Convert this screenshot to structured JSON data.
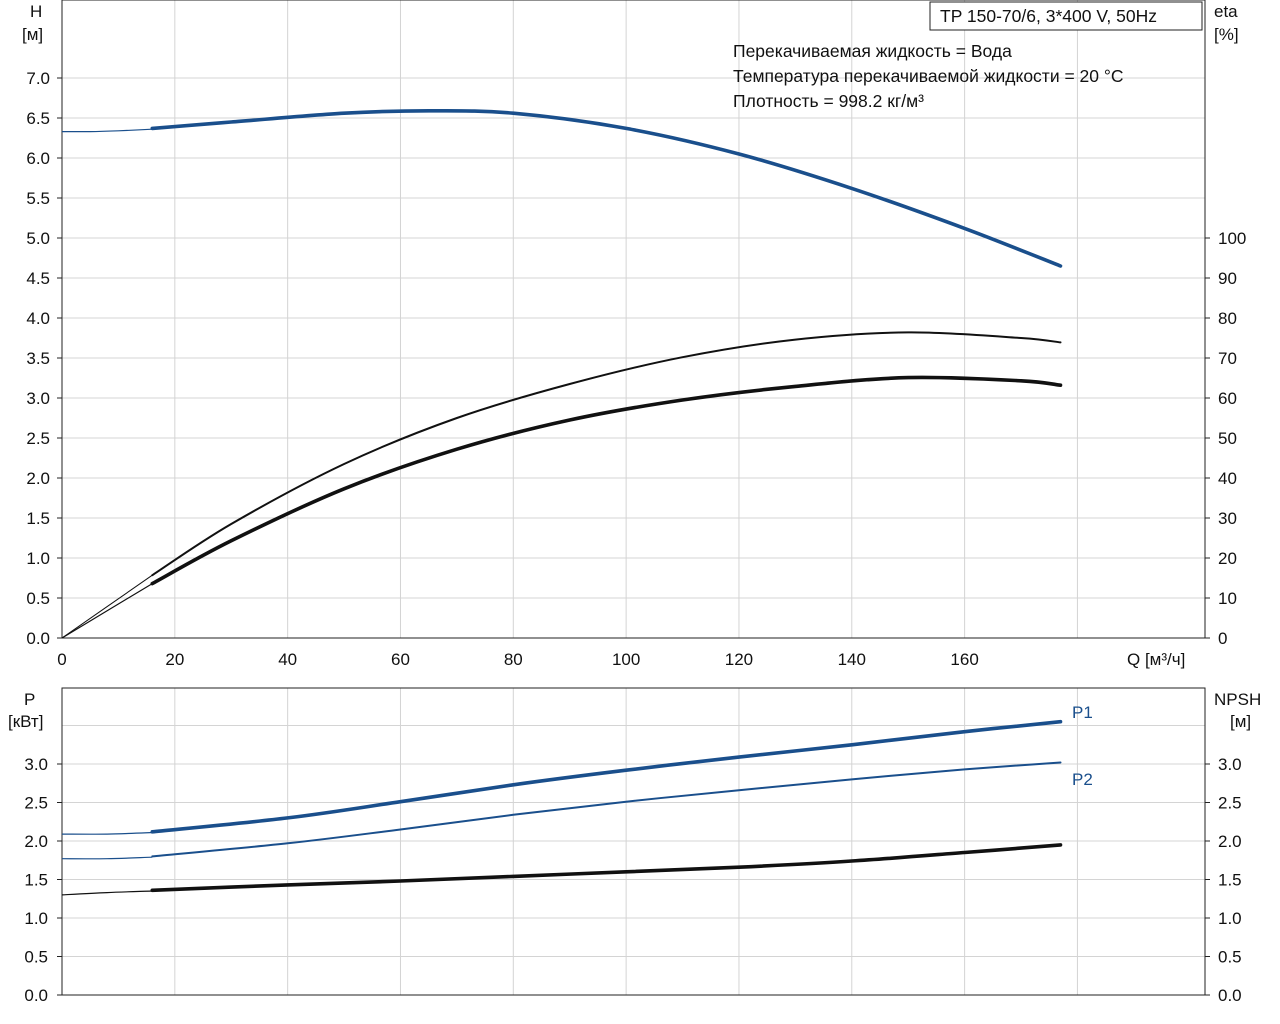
{
  "chart_data": [
    {
      "type": "line",
      "title_box": "TP 150-70/6, 3*400 V, 50Hz",
      "info_lines": [
        "Перекачиваемая жидкость = Вода",
        "Температура перекачиваемой жидкости = 20 °C",
        "Плотность = 998.2 кг/м³"
      ],
      "left_axis": {
        "label": "H",
        "unit": "[м]",
        "range": [
          0,
          7.0
        ],
        "ticks": [
          "0.0",
          "0.5",
          "1.0",
          "1.5",
          "2.0",
          "2.5",
          "3.0",
          "3.5",
          "4.0",
          "4.5",
          "5.0",
          "5.5",
          "6.0",
          "6.5",
          "7.0"
        ]
      },
      "right_axis": {
        "label": "eta",
        "unit": "[%]",
        "range": [
          0,
          100
        ],
        "ticks": [
          "0",
          "10",
          "20",
          "30",
          "40",
          "50",
          "60",
          "70",
          "80",
          "90",
          "100"
        ]
      },
      "x_axis": {
        "label": "Q [м³/ч]",
        "range": [
          0,
          180
        ],
        "ticks": [
          "0",
          "20",
          "40",
          "60",
          "80",
          "100",
          "120",
          "140",
          "160"
        ]
      },
      "grid": true,
      "series": [
        {
          "id": "H",
          "axis": "left",
          "color": "#1a4f8c",
          "dashed_x": [
            0,
            5,
            10,
            16
          ],
          "dashed_y": [
            6.33,
            6.33,
            6.34,
            6.36
          ],
          "x": [
            16,
            30,
            50,
            65,
            80,
            100,
            120,
            140,
            160,
            177
          ],
          "y": [
            6.37,
            6.45,
            6.56,
            6.59,
            6.56,
            6.37,
            6.05,
            5.62,
            5.12,
            4.65
          ]
        },
        {
          "id": "eta_total",
          "axis": "right",
          "color": "#111111",
          "dashed_x": [
            0,
            16
          ],
          "dashed_y": [
            0,
            13.6
          ],
          "x": [
            16,
            30,
            50,
            70,
            90,
            110,
            130,
            150,
            170,
            177
          ],
          "y": [
            13.6,
            24.3,
            37.3,
            47.2,
            54.5,
            59.5,
            62.9,
            65.1,
            64.3,
            63.2
          ]
        },
        {
          "id": "eta_pump",
          "axis": "right",
          "color": "#111111",
          "dashed_x": [
            0,
            16
          ],
          "dashed_y": [
            0,
            15.7
          ],
          "x": [
            16,
            30,
            50,
            70,
            90,
            110,
            130,
            150,
            170,
            177
          ],
          "y": [
            15.7,
            28.5,
            43.5,
            55.0,
            63.5,
            70.2,
            74.6,
            76.4,
            75.0,
            73.9
          ]
        }
      ]
    },
    {
      "type": "line",
      "left_axis": {
        "label": "P",
        "unit": "[кВт]",
        "range": [
          0,
          3.6
        ],
        "ticks": [
          "0.0",
          "0.5",
          "1.0",
          "1.5",
          "2.0",
          "2.5",
          "3.0"
        ]
      },
      "right_axis": {
        "label": "NPSH",
        "unit": "[м]",
        "range": [
          0,
          3.6
        ],
        "ticks": [
          "0.0",
          "0.5",
          "1.0",
          "1.5",
          "2.0",
          "2.5",
          "3.0"
        ]
      },
      "x_axis": {
        "range": [
          0,
          180
        ]
      },
      "grid": true,
      "series": [
        {
          "id": "P1",
          "name": "P1",
          "axis": "left",
          "color": "#1a4f8c",
          "dashed_x": [
            0,
            8,
            16
          ],
          "dashed_y": [
            2.09,
            2.09,
            2.11
          ],
          "x": [
            16,
            40,
            60,
            80,
            100,
            120,
            140,
            160,
            177
          ],
          "y": [
            2.12,
            2.3,
            2.51,
            2.73,
            2.92,
            3.09,
            3.25,
            3.42,
            3.55
          ]
        },
        {
          "id": "P2",
          "name": "P2",
          "axis": "left",
          "color": "#1a4f8c",
          "dashed_x": [
            0,
            8,
            16
          ],
          "dashed_y": [
            1.77,
            1.77,
            1.79
          ],
          "x": [
            16,
            40,
            60,
            80,
            100,
            120,
            140,
            160,
            177
          ],
          "y": [
            1.8,
            1.97,
            2.15,
            2.34,
            2.51,
            2.66,
            2.8,
            2.93,
            3.02
          ]
        },
        {
          "id": "NPSH",
          "axis": "right",
          "color": "#111111",
          "dashed_x": [
            0,
            8,
            16
          ],
          "dashed_y": [
            1.3,
            1.33,
            1.35
          ],
          "x": [
            16,
            40,
            60,
            80,
            100,
            120,
            140,
            160,
            177
          ],
          "y": [
            1.36,
            1.43,
            1.48,
            1.54,
            1.6,
            1.66,
            1.74,
            1.85,
            1.95
          ]
        }
      ]
    }
  ]
}
